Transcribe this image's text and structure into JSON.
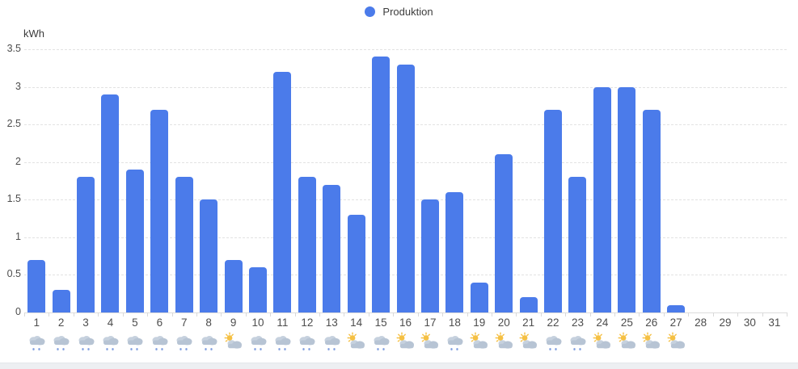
{
  "chart": {
    "legend": {
      "label": "Produktion"
    },
    "y_axis": {
      "unit": "kWh",
      "tick_labels": [
        "3.5",
        "3",
        "2.5",
        "2",
        "1.5",
        "1",
        "0.5",
        "0"
      ]
    },
    "colors": {
      "bar": "#4b7bea",
      "legend_dot": "#4b7bea",
      "grid": "#e2e2e2",
      "axis_text": "#4d4d4d",
      "rain_drop": "#84a1e0",
      "cloud": "#b7c4d4",
      "sun": "#f5c043"
    }
  },
  "chart_data": {
    "type": "bar",
    "title": "",
    "categories": [
      1,
      2,
      3,
      4,
      5,
      6,
      7,
      8,
      9,
      10,
      11,
      12,
      13,
      14,
      15,
      16,
      17,
      18,
      19,
      20,
      21,
      22,
      23,
      24,
      25,
      26,
      27,
      28,
      29,
      30,
      31
    ],
    "series": [
      {
        "name": "Produktion",
        "values": [
          0.7,
          0.3,
          1.8,
          2.9,
          1.9,
          2.7,
          1.8,
          1.5,
          0.7,
          0.6,
          3.2,
          1.8,
          1.7,
          1.3,
          3.4,
          3.3,
          1.5,
          1.6,
          0.4,
          2.1,
          0.2,
          2.7,
          1.8,
          3.0,
          3.0,
          2.7,
          0.1,
          0,
          0,
          0,
          0
        ]
      }
    ],
    "xlabel": "",
    "ylabel": "kWh",
    "ylim": [
      0,
      3.5
    ],
    "y_tick_step": 0.5,
    "grid": "horizontal-dashed",
    "legend_position": "top-center",
    "weather_icons": [
      "rain",
      "rain",
      "rain",
      "rain",
      "rain",
      "rain",
      "rain",
      "rain",
      "sun-cloud",
      "rain",
      "rain",
      "rain",
      "rain",
      "sun-cloud",
      "rain",
      "sun-cloud",
      "sun-cloud",
      "rain",
      "sun-cloud",
      "sun-cloud",
      "sun-cloud",
      "rain",
      "rain",
      "sun-cloud",
      "sun-cloud",
      "sun-cloud",
      "sun-cloud",
      "none",
      "none",
      "none",
      "none"
    ]
  }
}
